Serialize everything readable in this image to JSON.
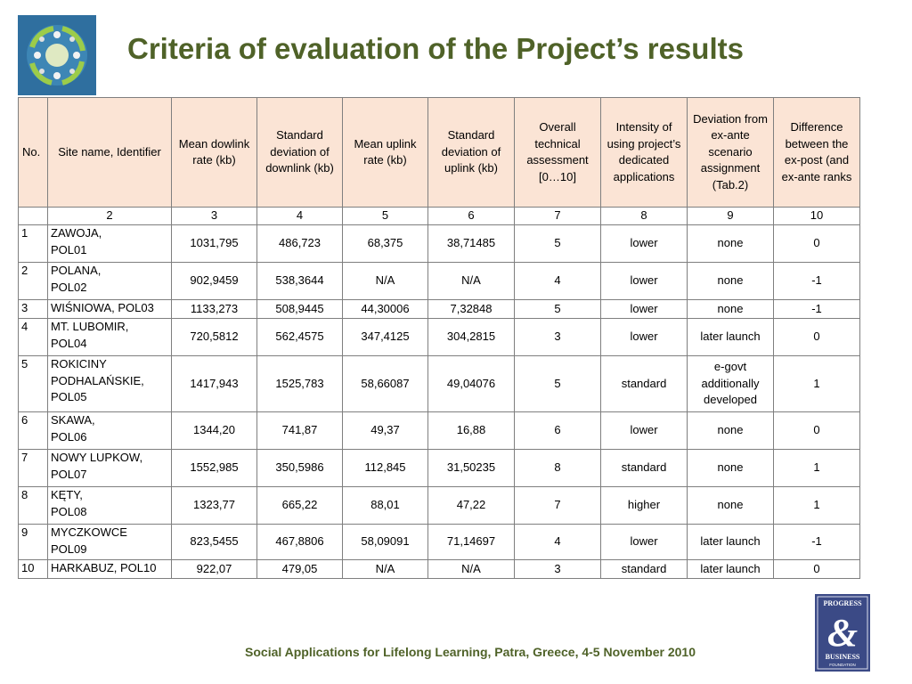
{
  "title": "Criteria of evaluation of the Project’s results",
  "logo": {
    "icon": "network-people-icon"
  },
  "badge": {
    "lines": [
      "PROGRESS",
      "&",
      "BUSINESS",
      "FOUNDATION"
    ]
  },
  "colors": {
    "title": "#4f6228",
    "header_fill": "#fbe4d5",
    "grid": "#7f7f7f"
  },
  "table": {
    "headers": [
      "No.",
      "Site name, Identifier",
      "Mean dowlink rate (kb)",
      "Standard deviation of downlink (kb)",
      "Mean uplink rate (kb)",
      "Standard deviation of uplink (kb)",
      "Overall technical assessment [0…10]",
      "Intensity of using project’s dedicated applications",
      "Deviation from ex-ante scenario assignment (Tab.2)",
      "Difference between the ex-post (and ex-ante ranks"
    ],
    "column_numbers": [
      "",
      "2",
      "3",
      "4",
      "5",
      "6",
      "7",
      "8",
      "9",
      "10"
    ],
    "rows": [
      [
        "1",
        "ZAWOJA,\n POL01",
        "1031,795",
        "486,723",
        "68,375",
        "38,71485",
        "5",
        "lower",
        "none",
        "0"
      ],
      [
        "2",
        "POLANA,\nPOL02",
        "902,9459",
        "538,3644",
        "N/A",
        "N/A",
        "4",
        "lower",
        "none",
        "-1"
      ],
      [
        "3",
        "WIŚNIOWA, POL03",
        "1133,273",
        "508,9445",
        "44,30006",
        "7,32848",
        "5",
        "lower",
        "none",
        "-1"
      ],
      [
        "4",
        "MT. LUBOMIR,\nPOL04",
        "720,5812",
        "562,4575",
        "347,4125",
        "304,2815",
        "3",
        "lower",
        "later launch",
        "0"
      ],
      [
        "5",
        "ROKICINY\nPODHALAŃSKIE,\nPOL05",
        "1417,943",
        "1525,783",
        "58,66087",
        "49,04076",
        "5",
        "standard",
        "e-govt\nadditionally\ndeveloped",
        "1"
      ],
      [
        "6",
        "SKAWA,\nPOL06",
        "1344,20",
        "741,87",
        "49,37",
        "16,88",
        "6",
        "lower",
        "none",
        "0"
      ],
      [
        "7",
        "NOWY LUPKOW,\nPOL07",
        "1552,985",
        "350,5986",
        "112,845",
        "31,50235",
        "8",
        "standard",
        "none",
        "1"
      ],
      [
        "8",
        "KĘTY,\nPOL08",
        "1323,77",
        "665,22",
        "88,01",
        "47,22",
        "7",
        "higher",
        "none",
        "1"
      ],
      [
        "9",
        "MYCZKOWCE\nPOL09",
        "823,5455",
        "467,8806",
        "58,09091",
        "71,14697",
        "4",
        "lower",
        "later launch",
        "-1"
      ],
      [
        "10",
        "HARKABUZ, POL10",
        "922,07",
        "479,05",
        "N/A",
        "N/A",
        "3",
        "standard",
        "later launch",
        "0"
      ]
    ]
  },
  "footer": "Social Applications for Lifelong Learning, Patra, Greece, 4-5 November 2010"
}
